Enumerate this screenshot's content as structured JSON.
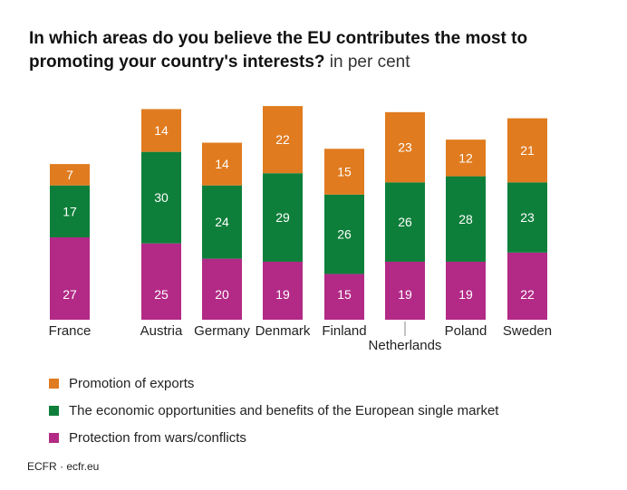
{
  "title": {
    "main": "In which areas do you believe the EU contributes the most to promoting your country's interests?",
    "unit": " in per cent"
  },
  "colors": {
    "exports": "#e07b1f",
    "single_market": "#0e7f3a",
    "protection": "#b22a86"
  },
  "chart_data": {
    "type": "bar",
    "stacked": true,
    "title": "In which areas do you believe the EU contributes the most to promoting your country's interests? in per cent",
    "xlabel": "",
    "ylabel": "",
    "categories": [
      "France",
      "Austria",
      "Germany",
      "Denmark",
      "Finland",
      "Netherlands",
      "Poland",
      "Sweden"
    ],
    "series": [
      {
        "name": "Protection from wars/conflicts",
        "key": "protection",
        "values": [
          27,
          25,
          20,
          19,
          15,
          19,
          19,
          22
        ]
      },
      {
        "name": "The economic opportunities and benefits of the European single market",
        "key": "single_market",
        "values": [
          17,
          30,
          24,
          29,
          26,
          26,
          28,
          23
        ]
      },
      {
        "name": "Promotion of exports",
        "key": "exports",
        "values": [
          7,
          14,
          14,
          22,
          15,
          23,
          12,
          21
        ]
      }
    ],
    "ylim": [
      0,
      75
    ],
    "grid": false,
    "data_labels": true,
    "legend_position": "bottom-left"
  },
  "legend": [
    {
      "label": "Promotion of exports",
      "key": "exports"
    },
    {
      "label": "The economic opportunities and benefits of the European single market",
      "key": "single_market"
    },
    {
      "label": "Protection from wars/conflicts",
      "key": "protection"
    }
  ],
  "source": "ECFR · ecfr.eu"
}
